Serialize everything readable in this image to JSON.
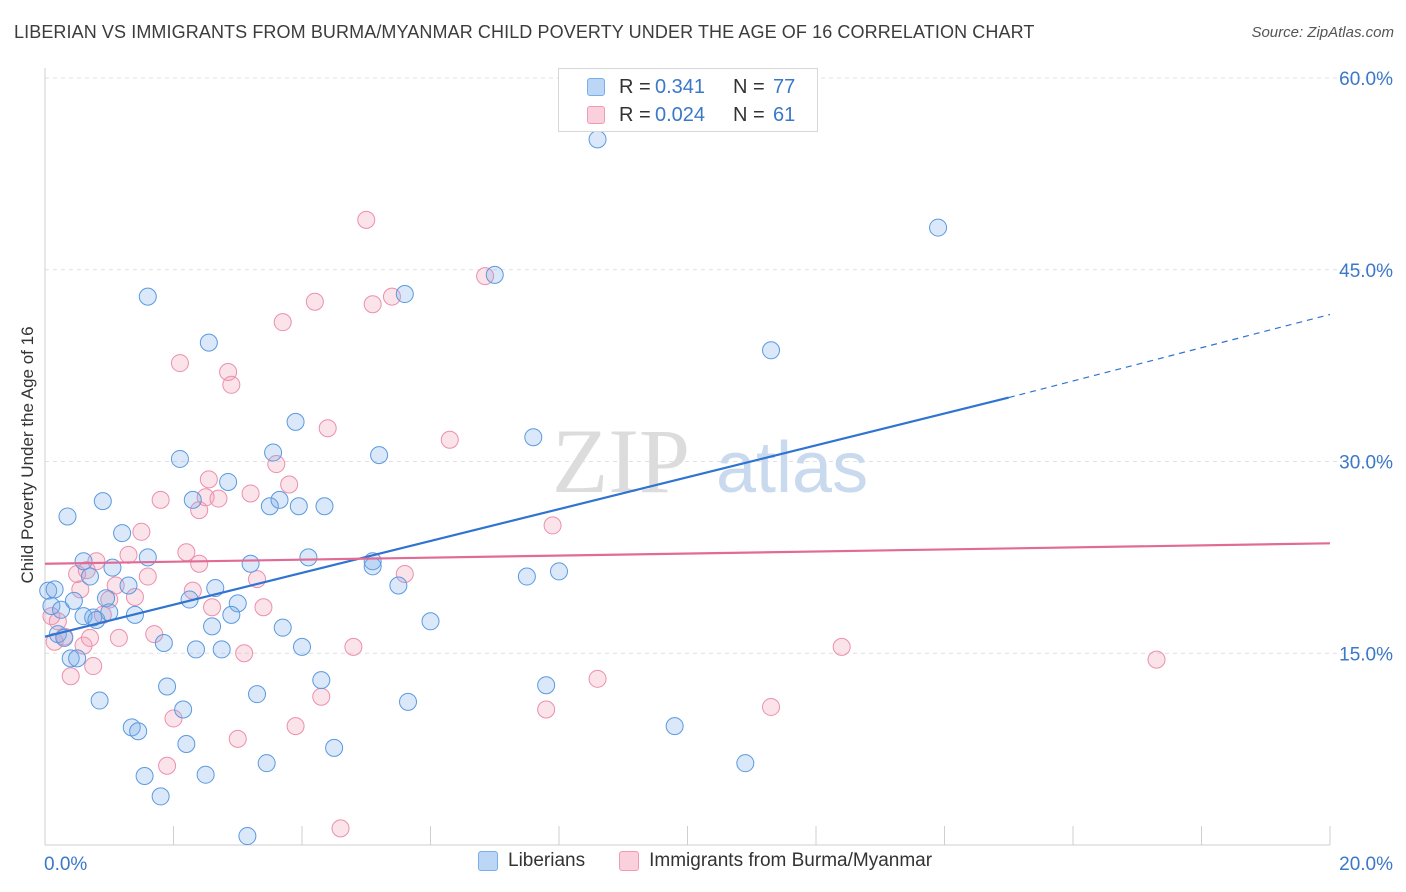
{
  "title": "LIBERIAN VS IMMIGRANTS FROM BURMA/MYANMAR CHILD POVERTY UNDER THE AGE OF 16 CORRELATION CHART",
  "source": "Source: ZipAtlas.com",
  "watermark": {
    "zip": "ZIP",
    "atlas": "atlas"
  },
  "legend": {
    "r_label": "R =",
    "n_label": "N =",
    "rows": [
      {
        "r": "0.341",
        "n": "77",
        "color": "#7aaee8"
      },
      {
        "r": "0.024",
        "n": "61",
        "color": "#f29ab4"
      }
    ]
  },
  "bottom_legend": [
    "Liberians",
    "Immigrants from Burma/Myanmar"
  ],
  "chart_data": {
    "type": "scatter",
    "xlabel": "",
    "ylabel": "Child Poverty Under the Age of 16",
    "xlim": [
      0,
      20
    ],
    "ylim": [
      0,
      60
    ],
    "x_tick_labels": [
      "0.0%",
      "20.0%"
    ],
    "y_ticks": [
      15,
      30,
      45,
      60
    ],
    "y_tick_labels": [
      "15.0%",
      "30.0%",
      "45.0%",
      "60.0%"
    ],
    "grid": true,
    "colors": {
      "liberians": "#5a9ae0",
      "burma": "#ec8fae",
      "liberians_line": "#2f74d0",
      "burma_line": "#e26b96"
    },
    "series": [
      {
        "name": "Liberians",
        "trend": {
          "x0": 0,
          "y0": 16.3,
          "x1": 15.0,
          "y1": 35.0,
          "dash_to_x": 20.0,
          "dash_to_y": 41.5
        },
        "points": [
          [
            0.05,
            19.9
          ],
          [
            0.1,
            18.7
          ],
          [
            0.15,
            20.0
          ],
          [
            0.2,
            16.5
          ],
          [
            0.25,
            18.4
          ],
          [
            0.3,
            16.2
          ],
          [
            0.35,
            25.7
          ],
          [
            0.4,
            14.6
          ],
          [
            0.45,
            19.1
          ],
          [
            0.5,
            14.6
          ],
          [
            0.6,
            17.9
          ],
          [
            0.7,
            21.0
          ],
          [
            0.75,
            17.8
          ],
          [
            0.8,
            17.6
          ],
          [
            0.85,
            11.3
          ],
          [
            0.9,
            26.9
          ],
          [
            0.95,
            19.3
          ],
          [
            1.05,
            21.7
          ],
          [
            1.2,
            24.4
          ],
          [
            1.3,
            20.3
          ],
          [
            1.35,
            9.2
          ],
          [
            1.4,
            18.0
          ],
          [
            1.45,
            8.9
          ],
          [
            1.55,
            5.4
          ],
          [
            1.6,
            22.5
          ],
          [
            1.8,
            3.8
          ],
          [
            1.85,
            15.8
          ],
          [
            1.9,
            12.4
          ],
          [
            2.1,
            30.2
          ],
          [
            2.15,
            10.6
          ],
          [
            2.2,
            7.9
          ],
          [
            2.25,
            19.2
          ],
          [
            2.35,
            15.3
          ],
          [
            2.5,
            5.5
          ],
          [
            2.55,
            39.3
          ],
          [
            2.6,
            17.1
          ],
          [
            2.65,
            20.1
          ],
          [
            2.75,
            15.3
          ],
          [
            2.85,
            28.4
          ],
          [
            3.0,
            18.9
          ],
          [
            3.15,
            0.7
          ],
          [
            3.3,
            11.8
          ],
          [
            3.45,
            6.4
          ],
          [
            3.5,
            26.5
          ],
          [
            3.55,
            30.7
          ],
          [
            3.65,
            27.0
          ],
          [
            3.7,
            17.0
          ],
          [
            3.9,
            33.1
          ],
          [
            3.95,
            26.5
          ],
          [
            4.1,
            22.5
          ],
          [
            4.3,
            12.9
          ],
          [
            4.35,
            26.5
          ],
          [
            4.5,
            7.6
          ],
          [
            5.1,
            22.2
          ],
          [
            5.2,
            30.5
          ],
          [
            5.5,
            20.3
          ],
          [
            5.6,
            43.1
          ],
          [
            5.65,
            11.2
          ],
          [
            7.0,
            44.6
          ],
          [
            7.5,
            21.0
          ],
          [
            7.6,
            31.9
          ],
          [
            7.8,
            12.5
          ],
          [
            8.0,
            21.4
          ],
          [
            8.6,
            55.2
          ],
          [
            1.6,
            42.9
          ],
          [
            9.8,
            9.3
          ],
          [
            10.9,
            6.4
          ],
          [
            11.3,
            38.7
          ],
          [
            13.9,
            48.3
          ],
          [
            0.6,
            22.2
          ],
          [
            1.0,
            18.2
          ],
          [
            5.1,
            21.8
          ],
          [
            2.9,
            18.0
          ],
          [
            4.0,
            15.5
          ],
          [
            3.2,
            22.0
          ],
          [
            6.0,
            17.5
          ],
          [
            2.3,
            27.0
          ]
        ]
      },
      {
        "name": "Immigrants from Burma/Myanmar",
        "trend": {
          "x0": 0,
          "y0": 22.0,
          "x1": 20.0,
          "y1": 23.6
        },
        "points": [
          [
            0.1,
            17.9
          ],
          [
            0.15,
            15.9
          ],
          [
            0.2,
            17.5
          ],
          [
            0.3,
            16.3
          ],
          [
            0.4,
            13.2
          ],
          [
            0.5,
            21.2
          ],
          [
            0.55,
            20.0
          ],
          [
            0.6,
            15.6
          ],
          [
            0.7,
            16.2
          ],
          [
            0.75,
            14.0
          ],
          [
            0.8,
            22.2
          ],
          [
            0.9,
            18.0
          ],
          [
            1.0,
            19.2
          ],
          [
            1.1,
            20.3
          ],
          [
            1.15,
            16.2
          ],
          [
            1.3,
            22.7
          ],
          [
            1.4,
            19.4
          ],
          [
            1.5,
            24.5
          ],
          [
            1.6,
            21.0
          ],
          [
            1.7,
            16.5
          ],
          [
            1.8,
            27.0
          ],
          [
            1.9,
            6.2
          ],
          [
            2.0,
            9.9
          ],
          [
            2.1,
            37.7
          ],
          [
            2.2,
            22.9
          ],
          [
            2.3,
            19.9
          ],
          [
            2.4,
            26.2
          ],
          [
            2.5,
            27.2
          ],
          [
            2.55,
            28.6
          ],
          [
            2.6,
            18.6
          ],
          [
            2.7,
            27.1
          ],
          [
            2.85,
            37.0
          ],
          [
            2.9,
            36.0
          ],
          [
            3.0,
            8.3
          ],
          [
            3.1,
            15.0
          ],
          [
            3.2,
            27.5
          ],
          [
            3.3,
            20.8
          ],
          [
            3.4,
            18.6
          ],
          [
            3.6,
            29.8
          ],
          [
            3.7,
            40.9
          ],
          [
            3.8,
            28.2
          ],
          [
            3.9,
            9.3
          ],
          [
            4.2,
            42.5
          ],
          [
            4.3,
            11.6
          ],
          [
            4.4,
            32.6
          ],
          [
            4.6,
            1.3
          ],
          [
            4.8,
            15.5
          ],
          [
            5.0,
            48.9
          ],
          [
            5.1,
            42.3
          ],
          [
            5.4,
            42.9
          ],
          [
            5.6,
            21.2
          ],
          [
            6.3,
            31.7
          ],
          [
            6.85,
            44.5
          ],
          [
            7.8,
            10.6
          ],
          [
            7.9,
            25.0
          ],
          [
            8.6,
            13.0
          ],
          [
            11.3,
            10.8
          ],
          [
            12.4,
            15.5
          ],
          [
            17.3,
            14.5
          ],
          [
            0.65,
            21.5
          ],
          [
            2.4,
            22.0
          ]
        ]
      }
    ]
  }
}
